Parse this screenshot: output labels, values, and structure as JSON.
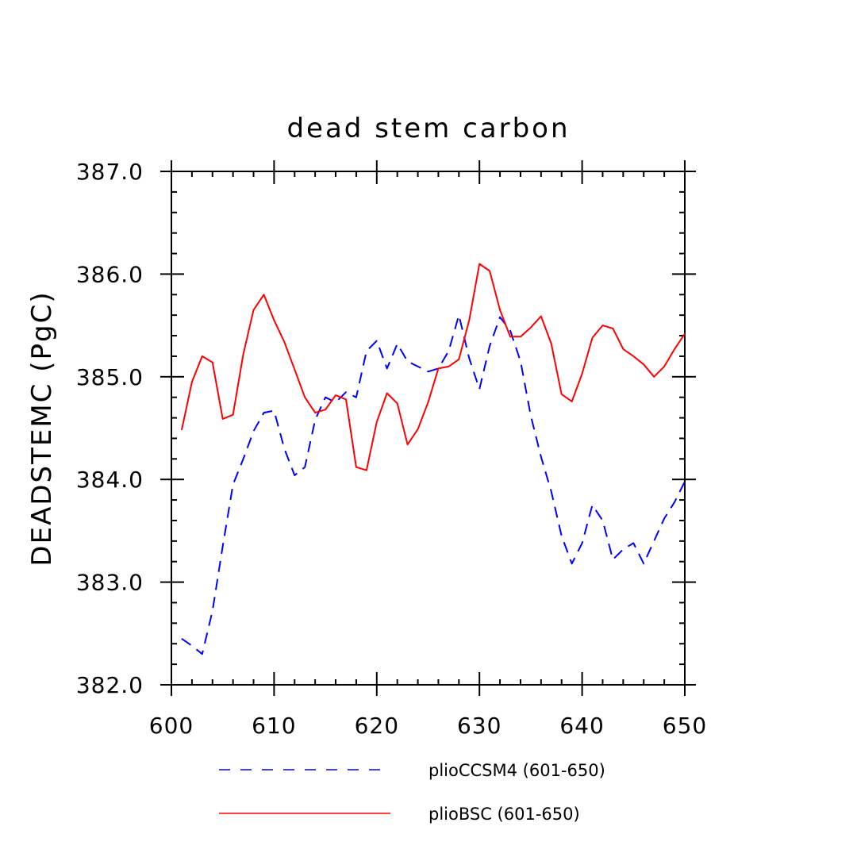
{
  "chart_data": {
    "type": "line",
    "title": "dead stem carbon",
    "xlabel": "",
    "ylabel": "DEADSTEMC   (PgC)",
    "xlim": [
      600,
      650
    ],
    "ylim": [
      382.0,
      387.0
    ],
    "x_major_ticks": [
      600,
      610,
      620,
      630,
      640,
      650
    ],
    "x_tick_labels": [
      "600",
      "610",
      "620",
      "630",
      "640",
      "650"
    ],
    "y_major_ticks": [
      382.0,
      383.0,
      384.0,
      385.0,
      386.0,
      387.0
    ],
    "y_tick_labels": [
      "382.0",
      "383.0",
      "384.0",
      "385.0",
      "386.0",
      "387.0"
    ],
    "x_minor_step": 2,
    "y_minor_step": 0.2,
    "grid": false,
    "legend_position": "bottom",
    "x": [
      601,
      602,
      603,
      604,
      605,
      606,
      607,
      608,
      609,
      610,
      611,
      612,
      613,
      614,
      615,
      616,
      617,
      618,
      619,
      620,
      621,
      622,
      623,
      624,
      625,
      626,
      627,
      628,
      629,
      630,
      631,
      632,
      633,
      634,
      635,
      636,
      637,
      638,
      639,
      640,
      641,
      642,
      643,
      644,
      645,
      646,
      647,
      648,
      649,
      650
    ],
    "series": [
      {
        "name": "plioCCSM4 (601-650)",
        "color": "#0000ff",
        "dash": "dashed",
        "values": [
          382.45,
          382.38,
          382.3,
          382.72,
          383.35,
          383.95,
          384.2,
          384.47,
          384.65,
          384.67,
          384.3,
          384.04,
          384.12,
          384.58,
          384.8,
          384.75,
          384.85,
          384.8,
          385.25,
          385.35,
          385.08,
          385.32,
          385.15,
          385.1,
          385.05,
          385.08,
          385.25,
          385.6,
          385.18,
          384.88,
          385.3,
          385.58,
          385.45,
          385.15,
          384.62,
          384.22,
          383.88,
          383.45,
          383.18,
          383.38,
          383.75,
          383.6,
          383.22,
          383.32,
          383.38,
          383.18,
          383.4,
          383.62,
          383.78,
          383.98
        ]
      },
      {
        "name": "plioBSC (601-650)",
        "color": "#ff0000",
        "dash": "solid",
        "values": [
          384.48,
          384.95,
          385.2,
          385.14,
          384.59,
          384.63,
          385.22,
          385.65,
          385.8,
          385.55,
          385.34,
          385.07,
          384.8,
          384.65,
          384.68,
          384.82,
          384.78,
          384.12,
          384.09,
          384.56,
          384.84,
          384.74,
          384.34,
          384.49,
          384.75,
          385.08,
          385.1,
          385.17,
          385.55,
          386.1,
          386.03,
          385.65,
          385.39,
          385.39,
          385.48,
          385.59,
          385.32,
          384.83,
          384.76,
          385.03,
          385.38,
          385.5,
          385.47,
          385.27,
          385.2,
          385.12,
          385.0,
          385.1,
          385.27,
          385.42
        ]
      }
    ]
  }
}
